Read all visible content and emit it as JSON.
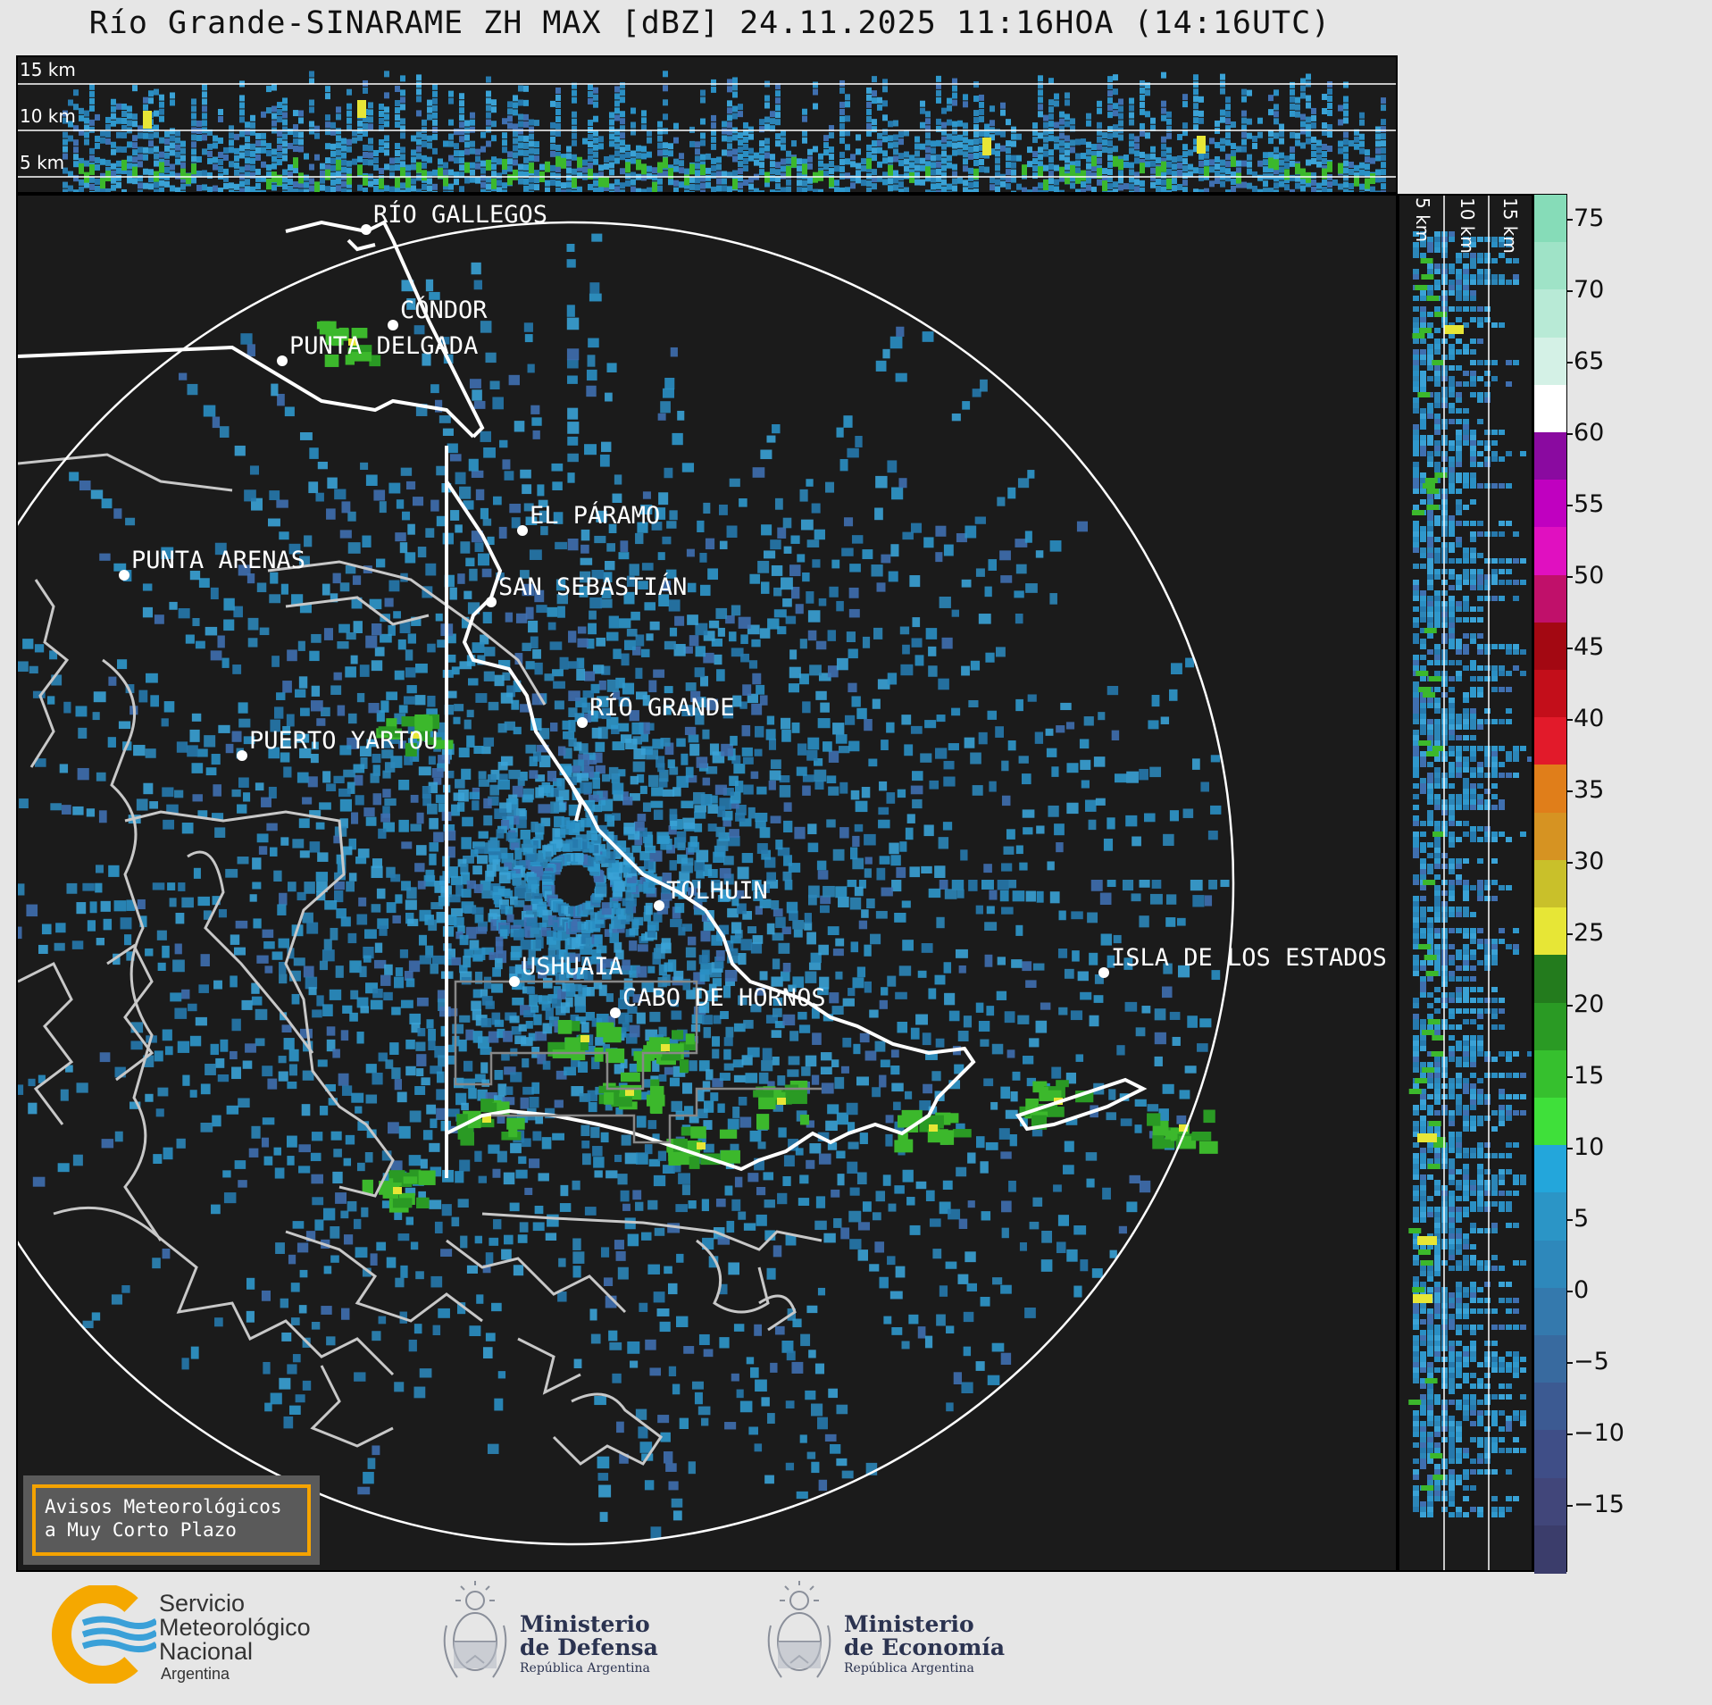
{
  "title": "Río Grande-SINARAME ZH MAX [dBZ] 24.11.2025 11:16HOA (14:16UTC)",
  "top_panel": {
    "altitude_labels": [
      "15 km",
      "10 km",
      "5 km"
    ]
  },
  "side_panel": {
    "altitude_labels": [
      "5 km",
      "10 km",
      "15 km"
    ]
  },
  "places": [
    {
      "name": "RÍO GALLEGOS"
    },
    {
      "name": "CÓNDOR"
    },
    {
      "name": "PUNTA DELGADA"
    },
    {
      "name": "EL PÁRAMO"
    },
    {
      "name": "SAN SEBASTIÁN"
    },
    {
      "name": "PUNTA ARENAS"
    },
    {
      "name": "RÍO GRANDE"
    },
    {
      "name": "PUERTO YARTOU"
    },
    {
      "name": "TOLHUIN"
    },
    {
      "name": "USHUAIA"
    },
    {
      "name": "CABO DE HORNOS"
    },
    {
      "name": "ISLA DE LOS ESTADOS"
    }
  ],
  "colorbar": {
    "ticks": [
      "75",
      "70",
      "65",
      "60",
      "55",
      "50",
      "45",
      "40",
      "35",
      "30",
      "25",
      "20",
      "15",
      "10",
      "5",
      "0",
      "−5",
      "−10",
      "−15"
    ],
    "colors": [
      "#3b3d6b",
      "#41467a",
      "#3f4e87",
      "#3c5a92",
      "#386a9f",
      "#3479ad",
      "#2e88bb",
      "#2b95c6",
      "#23a6db",
      "#3fe03a",
      "#36c02e",
      "#2a9a24",
      "#237b1d",
      "#e7e636",
      "#c9c02a",
      "#d69322",
      "#e07e1a",
      "#e21a2a",
      "#c30e1a",
      "#a30812",
      "#c0106a",
      "#e010c0",
      "#c000c0",
      "#8a0aa0",
      "#ffffff",
      "#d4f1e6",
      "#b8ead6",
      "#9fe3c7",
      "#86dcb8"
    ]
  },
  "alert": {
    "line1": "Avisos Meteorológicos",
    "line2": "a Muy Corto Plazo"
  },
  "footer": {
    "smn": {
      "line1": "Servicio",
      "line2": "Meteorológico",
      "line3": "Nacional",
      "line4": "Argentina"
    },
    "defensa": {
      "line1": "Ministerio",
      "line2": "de Defensa",
      "line3": "República Argentina"
    },
    "economia": {
      "line1": "Ministerio",
      "line2": "de Economía",
      "line3": "República Argentina"
    }
  }
}
